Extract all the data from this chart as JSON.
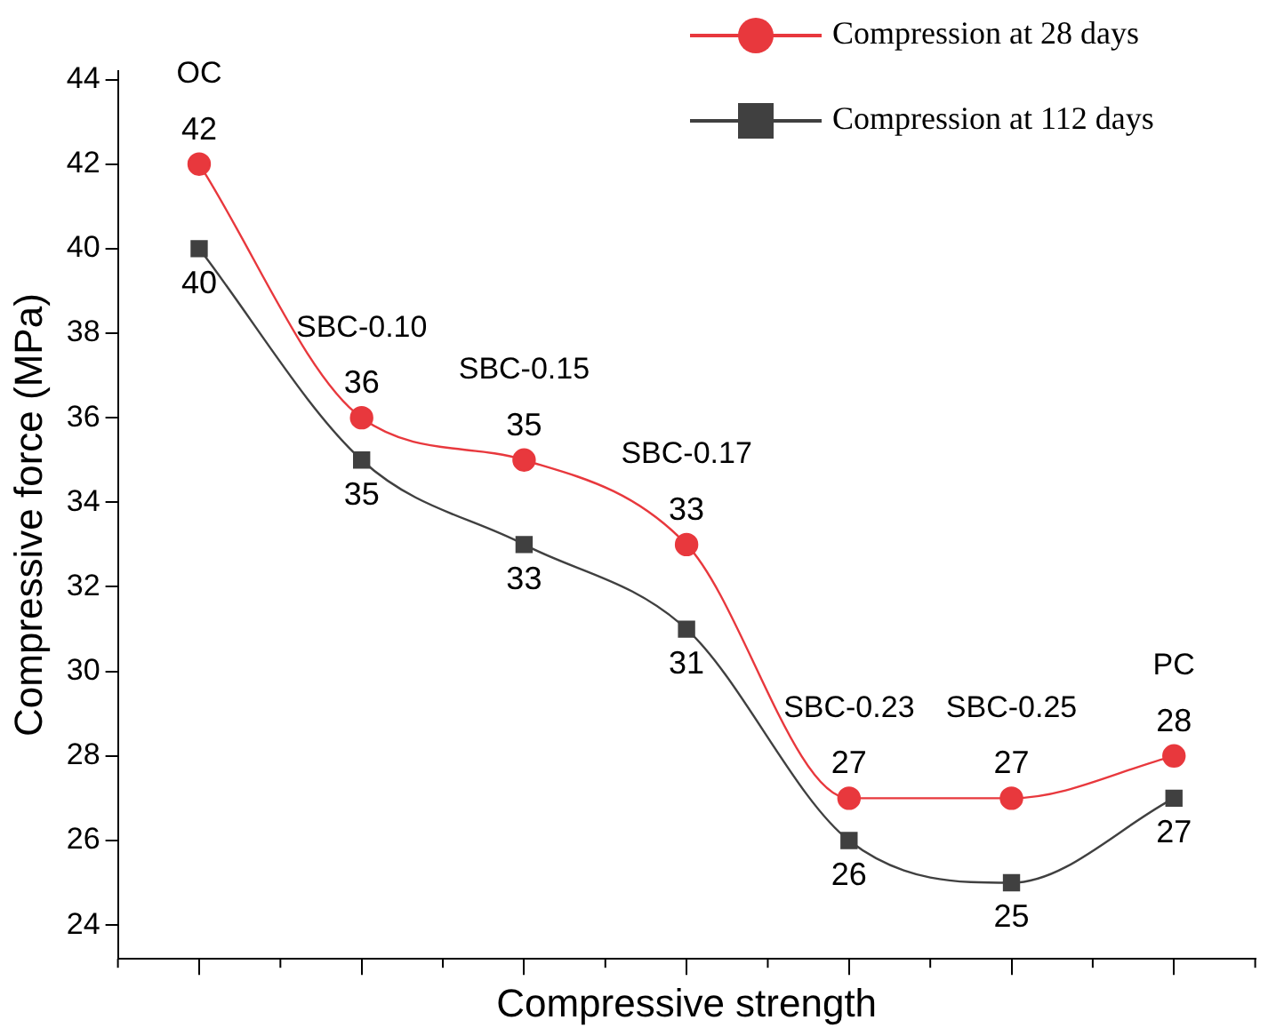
{
  "chart_data": {
    "type": "line",
    "xlabel": "Compressive strength",
    "ylabel": "Compressive force (MPa)",
    "categories": [
      "OC",
      "SBC-0.10",
      "SBC-0.15",
      "SBC-0.17",
      "SBC-0.23",
      "SBC-0.25",
      "PC"
    ],
    "series": [
      {
        "name": "Compression at 28 days",
        "color": "#e8383d",
        "marker": "circle",
        "values": [
          42,
          36,
          35,
          33,
          27,
          27,
          28
        ]
      },
      {
        "name": "Compression at 112 days",
        "color": "#404040",
        "marker": "square",
        "values": [
          40,
          35,
          33,
          31,
          26,
          25,
          27
        ]
      }
    ],
    "ylim": [
      23.2,
      44.2
    ],
    "yticks": [
      24,
      26,
      28,
      30,
      32,
      34,
      36,
      38,
      40,
      42,
      44
    ],
    "grid": false,
    "legend": "top right",
    "data_labels": true,
    "tick_labels": "y"
  }
}
